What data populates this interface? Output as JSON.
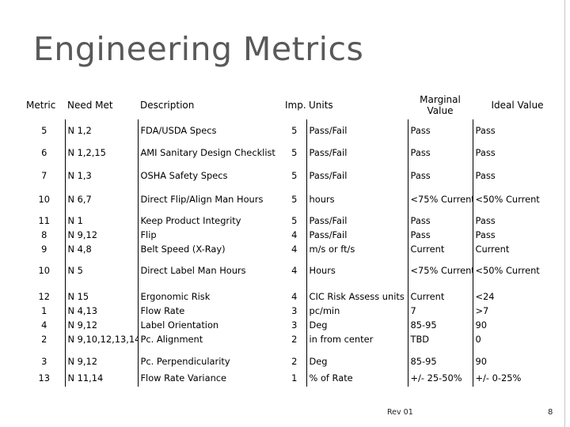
{
  "title": "Engineering Metrics",
  "headers": {
    "metric": "Metric",
    "need": "Need Met",
    "description": "Description",
    "imp": "Imp.",
    "units": "Units",
    "marginal": "Marginal Value",
    "ideal": "Ideal Value"
  },
  "rows": [
    {
      "metric": [
        "5"
      ],
      "need": [
        "N 1,2"
      ],
      "desc": [
        "FDA/USDA Specs"
      ],
      "imp": [
        "5"
      ],
      "units": [
        "Pass/Fail"
      ],
      "marginal": [
        "Pass"
      ],
      "ideal": [
        "Pass"
      ]
    },
    {
      "metric": [
        "6"
      ],
      "need": [
        "N 1,2,15"
      ],
      "desc": [
        "AMI Sanitary Design Checklist"
      ],
      "imp": [
        "5"
      ],
      "units": [
        "Pass/Fail"
      ],
      "marginal": [
        "Pass"
      ],
      "ideal": [
        "Pass"
      ]
    },
    {
      "metric": [
        "7"
      ],
      "need": [
        "N 1,3"
      ],
      "desc": [
        "OSHA Safety Specs"
      ],
      "imp": [
        "5"
      ],
      "units": [
        "Pass/Fail"
      ],
      "marginal": [
        "Pass"
      ],
      "ideal": [
        "Pass"
      ]
    },
    {
      "metric": [
        "10"
      ],
      "need": [
        "N 6,7"
      ],
      "desc": [
        "Direct Flip/Align Man Hours"
      ],
      "imp": [
        "5"
      ],
      "units": [
        "hours"
      ],
      "marginal": [
        "<75% Current"
      ],
      "ideal": [
        "<50% Current"
      ]
    },
    {
      "metric": [
        "11",
        "8",
        "9"
      ],
      "need": [
        "N 1",
        "N 9,12",
        "N 4,8"
      ],
      "desc": [
        "Keep Product Integrity",
        "Flip",
        "Belt Speed (X-Ray)"
      ],
      "imp": [
        "5",
        "4",
        "4"
      ],
      "units": [
        "Pass/Fail",
        "Pass/Fail",
        "m/s or ft/s"
      ],
      "marginal": [
        "Pass",
        "Pass",
        "Current"
      ],
      "ideal": [
        "Pass",
        "Pass",
        "Current"
      ]
    },
    {
      "metric": [
        "10"
      ],
      "need": [
        "N 5"
      ],
      "desc": [
        "Direct Label Man Hours"
      ],
      "imp": [
        "4"
      ],
      "units": [
        "Hours"
      ],
      "marginal": [
        "<75% Current"
      ],
      "ideal": [
        "<50% Current"
      ]
    },
    {
      "metric": [
        "12",
        "1",
        "4",
        "2"
      ],
      "need": [
        "N 15",
        "N 4,13",
        "N 9,12",
        "N 9,10,12,13,14"
      ],
      "desc": [
        "Ergonomic Risk",
        "Flow Rate",
        "Label Orientation",
        "Pc. Alignment"
      ],
      "imp": [
        "4",
        "3",
        "3",
        "2"
      ],
      "units": [
        "CIC Risk Assess units",
        "pc/min",
        "Deg",
        "in from center"
      ],
      "marginal": [
        "Current",
        "7",
        "85-95",
        "TBD"
      ],
      "ideal": [
        "<24",
        ">7",
        "90",
        "0"
      ]
    },
    {
      "metric": [
        "3"
      ],
      "need": [
        "N 9,12"
      ],
      "desc": [
        "Pc. Perpendicularity"
      ],
      "imp": [
        "2"
      ],
      "units": [
        "Deg"
      ],
      "marginal": [
        "85-95"
      ],
      "ideal": [
        "90"
      ]
    },
    {
      "metric": [
        "13"
      ],
      "need": [
        "N 11,14"
      ],
      "desc": [
        "Flow Rate Variance"
      ],
      "imp": [
        "1"
      ],
      "units": [
        "% of Rate"
      ],
      "marginal": [
        "+/- 25-50%"
      ],
      "ideal": [
        "+/- 0-25%"
      ]
    }
  ],
  "footer": "Rev 01",
  "page_number": "8"
}
